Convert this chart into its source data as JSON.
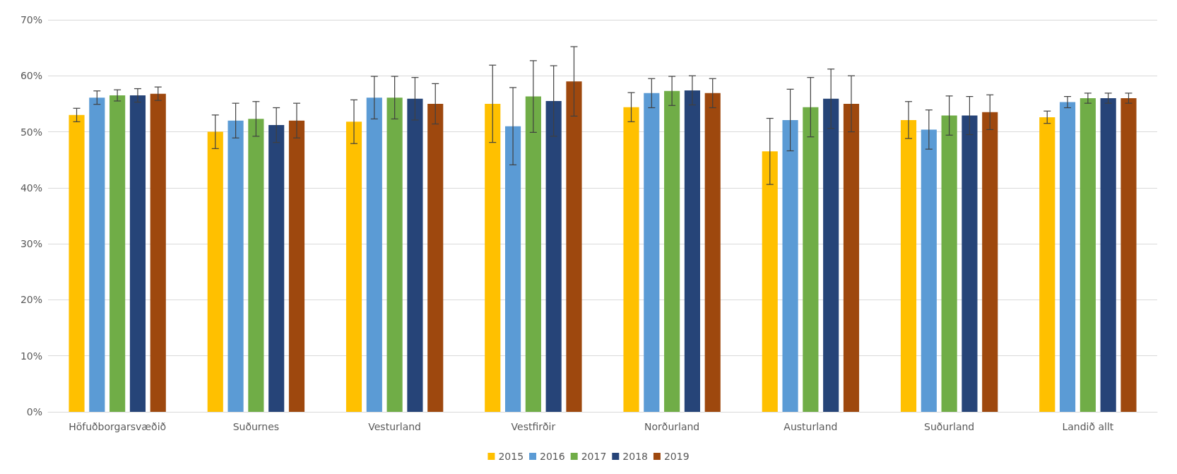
{
  "chart_data": {
    "type": "bar",
    "categories": [
      "Höfuðborgarsvæðið",
      "Suðurnes",
      "Vesturland",
      "Vestfirðir",
      "Norðurland",
      "Austurland",
      "Suðurland",
      "Landið allt"
    ],
    "series": [
      {
        "name": "2015",
        "color": "#ffc000",
        "values": [
          53,
          50,
          51.8,
          55,
          54.4,
          46.5,
          52.1,
          52.6
        ],
        "errors": [
          1.2,
          3,
          3.9,
          6.9,
          2.6,
          5.9,
          3.3,
          1.1
        ]
      },
      {
        "name": "2016",
        "color": "#5b9bd5",
        "values": [
          56.1,
          52,
          56.1,
          51,
          56.9,
          52.1,
          50.4,
          55.3
        ],
        "errors": [
          1.2,
          3.1,
          3.8,
          6.9,
          2.6,
          5.5,
          3.5,
          1
        ]
      },
      {
        "name": "2017",
        "color": "#70ad47",
        "values": [
          56.5,
          52.3,
          56.1,
          56.3,
          57.3,
          54.4,
          52.9,
          56
        ],
        "errors": [
          1,
          3.1,
          3.8,
          6.4,
          2.6,
          5.3,
          3.5,
          0.9
        ]
      },
      {
        "name": "2018",
        "color": "#264478",
        "values": [
          56.5,
          51.2,
          55.9,
          55.5,
          57.4,
          55.9,
          52.9,
          56
        ],
        "errors": [
          1.2,
          3.1,
          3.8,
          6.3,
          2.6,
          5.3,
          3.4,
          0.9
        ]
      },
      {
        "name": "2019",
        "color": "#9e480e",
        "values": [
          56.8,
          52,
          55,
          59,
          56.9,
          55,
          53.5,
          56
        ],
        "errors": [
          1.2,
          3.1,
          3.6,
          6.2,
          2.6,
          5,
          3.1,
          0.9
        ]
      }
    ],
    "ylim": [
      0,
      70
    ],
    "yticks": [
      {
        "value": 0,
        "label": "0%"
      },
      {
        "value": 10,
        "label": "10%"
      },
      {
        "value": 20,
        "label": "20%"
      },
      {
        "value": 30,
        "label": "30%"
      },
      {
        "value": 40,
        "label": "40%"
      },
      {
        "value": 50,
        "label": "50%"
      },
      {
        "value": 60,
        "label": "60%"
      },
      {
        "value": 70,
        "label": "70%"
      }
    ],
    "grid": "y",
    "legend": "bottom"
  }
}
